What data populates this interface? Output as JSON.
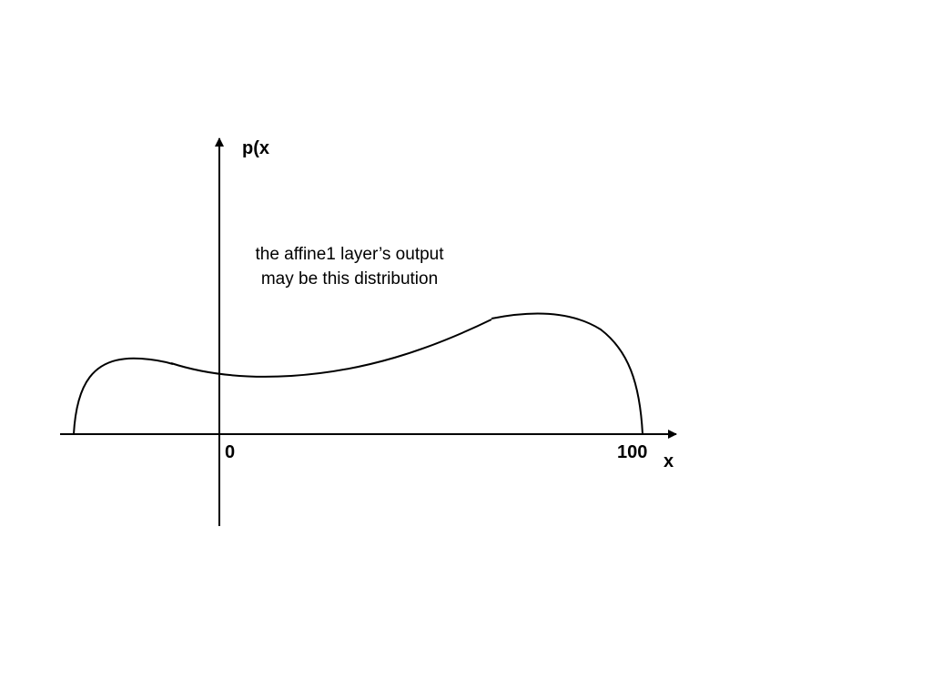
{
  "axes": {
    "y_label": "p(x",
    "x_label": "x",
    "origin_tick": "0",
    "end_tick": "100"
  },
  "annotation": {
    "line1": "the affine1 layer’s output",
    "line2": "may be this distribution"
  },
  "colors": {
    "stroke": "#000000",
    "text": "#000000",
    "background": "#ffffff"
  }
}
